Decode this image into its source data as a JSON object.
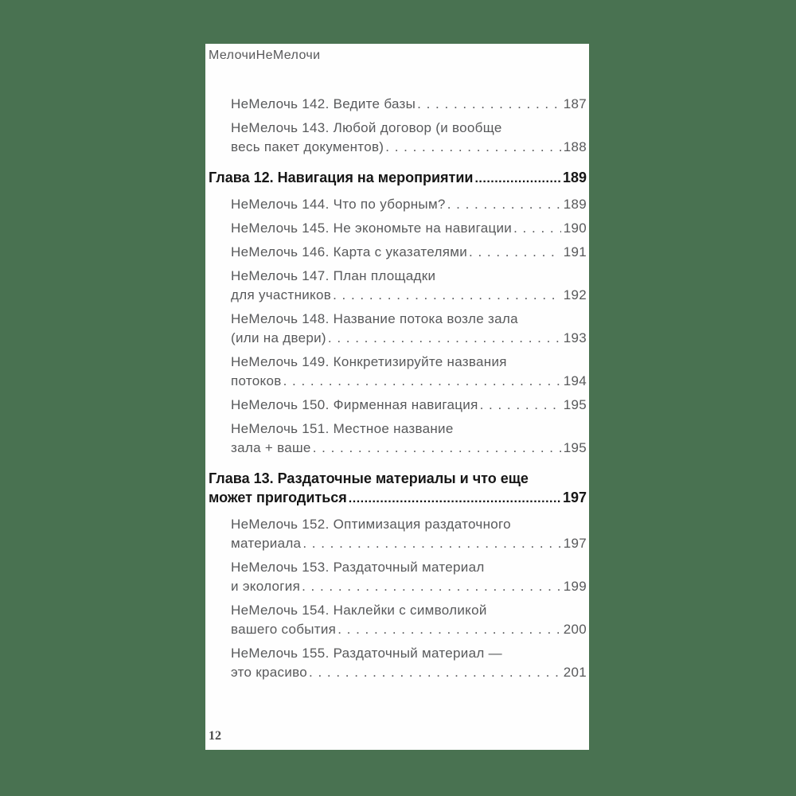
{
  "colors": {
    "background": "#497251",
    "page": "#fefefe",
    "entry_text": "#58595b",
    "chapter_text": "#161616",
    "folio_text": "#4a4a4a"
  },
  "page": {
    "running_header": "МелочиНеМелочи",
    "folio": "12"
  },
  "toc": [
    {
      "type": "entry",
      "lines": [
        "НеМелочь 142. Ведите базы"
      ],
      "page": "187"
    },
    {
      "type": "entry",
      "lines": [
        "НеМелочь 143. Любой договор (и вообще",
        "весь пакет документов)"
      ],
      "page": "188"
    },
    {
      "type": "chapter",
      "lines": [
        "Глава 12. Навигация на мероприятии"
      ],
      "page": "189"
    },
    {
      "type": "entry",
      "lines": [
        "НеМелочь 144. Что по уборным?"
      ],
      "page": "189"
    },
    {
      "type": "entry",
      "lines": [
        "НеМелочь 145. Не экономьте на навигации"
      ],
      "page": "190"
    },
    {
      "type": "entry",
      "lines": [
        "НеМелочь 146. Карта с указателями"
      ],
      "page": "191"
    },
    {
      "type": "entry",
      "lines": [
        "НеМелочь 147. План площадки",
        "для участников"
      ],
      "page": "192"
    },
    {
      "type": "entry",
      "lines": [
        "НеМелочь 148. Название потока возле зала",
        "(или на двери)"
      ],
      "page": "193"
    },
    {
      "type": "entry",
      "lines": [
        "НеМелочь 149. Конкретизируйте названия",
        "потоков"
      ],
      "page": "194"
    },
    {
      "type": "entry",
      "lines": [
        "НеМелочь 150. Фирменная навигация"
      ],
      "page": "195"
    },
    {
      "type": "entry",
      "lines": [
        "НеМелочь 151. Местное название",
        "зала + ваше"
      ],
      "page": "195"
    },
    {
      "type": "chapter",
      "lines": [
        "Глава 13. Раздаточные материалы и что еще",
        "может пригодиться"
      ],
      "page": "197"
    },
    {
      "type": "entry",
      "lines": [
        "НеМелочь 152. Оптимизация раздаточного",
        "материала"
      ],
      "page": "197"
    },
    {
      "type": "entry",
      "lines": [
        "НеМелочь 153. Раздаточный материал",
        "и экология"
      ],
      "page": "199"
    },
    {
      "type": "entry",
      "lines": [
        "НеМелочь 154. Наклейки с символикой",
        "вашего события"
      ],
      "page": "200"
    },
    {
      "type": "entry",
      "lines": [
        "НеМелочь 155. Раздаточный материал —",
        "это красиво"
      ],
      "page": "201"
    }
  ]
}
